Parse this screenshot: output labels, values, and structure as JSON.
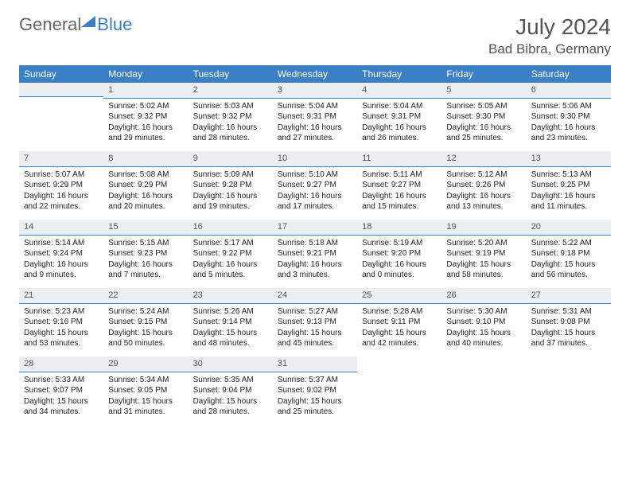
{
  "brand": {
    "part1": "General",
    "part2": "Blue"
  },
  "title": "July 2024",
  "location": "Bad Bibra, Germany",
  "colors": {
    "header_bg": "#3b7fc4",
    "header_text": "#ffffff",
    "daynum_bg": "#eceff1",
    "daynum_border": "#3b7fc4",
    "body_text": "#222222",
    "title_text": "#555555",
    "brand_gray": "#666666",
    "brand_blue": "#3b7fc4",
    "page_bg": "#ffffff"
  },
  "typography": {
    "title_fontsize": 28,
    "location_fontsize": 17,
    "dayheader_fontsize": 12,
    "daynum_fontsize": 11,
    "body_fontsize": 10
  },
  "layout": {
    "columns": 7,
    "rows": 5,
    "first_day_column": 1
  },
  "weekdays": [
    "Sunday",
    "Monday",
    "Tuesday",
    "Wednesday",
    "Thursday",
    "Friday",
    "Saturday"
  ],
  "days": [
    {
      "n": 1,
      "sunrise": "5:02 AM",
      "sunset": "9:32 PM",
      "daylight": "16 hours and 29 minutes."
    },
    {
      "n": 2,
      "sunrise": "5:03 AM",
      "sunset": "9:32 PM",
      "daylight": "16 hours and 28 minutes."
    },
    {
      "n": 3,
      "sunrise": "5:04 AM",
      "sunset": "9:31 PM",
      "daylight": "16 hours and 27 minutes."
    },
    {
      "n": 4,
      "sunrise": "5:04 AM",
      "sunset": "9:31 PM",
      "daylight": "16 hours and 26 minutes."
    },
    {
      "n": 5,
      "sunrise": "5:05 AM",
      "sunset": "9:30 PM",
      "daylight": "16 hours and 25 minutes."
    },
    {
      "n": 6,
      "sunrise": "5:06 AM",
      "sunset": "9:30 PM",
      "daylight": "16 hours and 23 minutes."
    },
    {
      "n": 7,
      "sunrise": "5:07 AM",
      "sunset": "9:29 PM",
      "daylight": "16 hours and 22 minutes."
    },
    {
      "n": 8,
      "sunrise": "5:08 AM",
      "sunset": "9:29 PM",
      "daylight": "16 hours and 20 minutes."
    },
    {
      "n": 9,
      "sunrise": "5:09 AM",
      "sunset": "9:28 PM",
      "daylight": "16 hours and 19 minutes."
    },
    {
      "n": 10,
      "sunrise": "5:10 AM",
      "sunset": "9:27 PM",
      "daylight": "16 hours and 17 minutes."
    },
    {
      "n": 11,
      "sunrise": "5:11 AM",
      "sunset": "9:27 PM",
      "daylight": "16 hours and 15 minutes."
    },
    {
      "n": 12,
      "sunrise": "5:12 AM",
      "sunset": "9:26 PM",
      "daylight": "16 hours and 13 minutes."
    },
    {
      "n": 13,
      "sunrise": "5:13 AM",
      "sunset": "9:25 PM",
      "daylight": "16 hours and 11 minutes."
    },
    {
      "n": 14,
      "sunrise": "5:14 AM",
      "sunset": "9:24 PM",
      "daylight": "16 hours and 9 minutes."
    },
    {
      "n": 15,
      "sunrise": "5:15 AM",
      "sunset": "9:23 PM",
      "daylight": "16 hours and 7 minutes."
    },
    {
      "n": 16,
      "sunrise": "5:17 AM",
      "sunset": "9:22 PM",
      "daylight": "16 hours and 5 minutes."
    },
    {
      "n": 17,
      "sunrise": "5:18 AM",
      "sunset": "9:21 PM",
      "daylight": "16 hours and 3 minutes."
    },
    {
      "n": 18,
      "sunrise": "5:19 AM",
      "sunset": "9:20 PM",
      "daylight": "16 hours and 0 minutes."
    },
    {
      "n": 19,
      "sunrise": "5:20 AM",
      "sunset": "9:19 PM",
      "daylight": "15 hours and 58 minutes."
    },
    {
      "n": 20,
      "sunrise": "5:22 AM",
      "sunset": "9:18 PM",
      "daylight": "15 hours and 56 minutes."
    },
    {
      "n": 21,
      "sunrise": "5:23 AM",
      "sunset": "9:16 PM",
      "daylight": "15 hours and 53 minutes."
    },
    {
      "n": 22,
      "sunrise": "5:24 AM",
      "sunset": "9:15 PM",
      "daylight": "15 hours and 50 minutes."
    },
    {
      "n": 23,
      "sunrise": "5:26 AM",
      "sunset": "9:14 PM",
      "daylight": "15 hours and 48 minutes."
    },
    {
      "n": 24,
      "sunrise": "5:27 AM",
      "sunset": "9:13 PM",
      "daylight": "15 hours and 45 minutes."
    },
    {
      "n": 25,
      "sunrise": "5:28 AM",
      "sunset": "9:11 PM",
      "daylight": "15 hours and 42 minutes."
    },
    {
      "n": 26,
      "sunrise": "5:30 AM",
      "sunset": "9:10 PM",
      "daylight": "15 hours and 40 minutes."
    },
    {
      "n": 27,
      "sunrise": "5:31 AM",
      "sunset": "9:08 PM",
      "daylight": "15 hours and 37 minutes."
    },
    {
      "n": 28,
      "sunrise": "5:33 AM",
      "sunset": "9:07 PM",
      "daylight": "15 hours and 34 minutes."
    },
    {
      "n": 29,
      "sunrise": "5:34 AM",
      "sunset": "9:05 PM",
      "daylight": "15 hours and 31 minutes."
    },
    {
      "n": 30,
      "sunrise": "5:35 AM",
      "sunset": "9:04 PM",
      "daylight": "15 hours and 28 minutes."
    },
    {
      "n": 31,
      "sunrise": "5:37 AM",
      "sunset": "9:02 PM",
      "daylight": "15 hours and 25 minutes."
    }
  ],
  "labels": {
    "sunrise": "Sunrise:",
    "sunset": "Sunset:",
    "daylight": "Daylight:"
  }
}
